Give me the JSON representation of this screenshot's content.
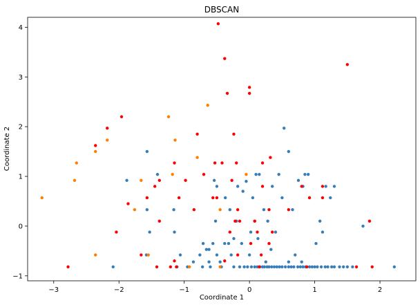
{
  "chart_data": {
    "type": "scatter",
    "title": "DBSCAN",
    "xlabel": "Coordinate 1",
    "ylabel": "Coordinate 2",
    "xlim": [
      -3.4,
      2.55
    ],
    "ylim": [
      -1.1,
      4.2
    ],
    "xticks": [
      -3,
      -2,
      -1,
      0,
      1,
      2
    ],
    "yticks": [
      -1,
      0,
      1,
      2,
      3,
      4
    ],
    "grid": false,
    "legend": "none",
    "series": [
      {
        "color": "#377eb8",
        "points": [
          [
            -2.09,
            -0.82
          ],
          [
            -1.88,
            0.92
          ],
          [
            -1.57,
            1.5
          ],
          [
            -1.57,
            0.33
          ],
          [
            -1.53,
            -0.12
          ],
          [
            -1.58,
            -0.58
          ],
          [
            -1.41,
            1.04
          ],
          [
            -1.16,
            0.33
          ],
          [
            -1.15,
            -0.12
          ],
          [
            -1.06,
            -0.58
          ],
          [
            -1.11,
            -0.82
          ],
          [
            -0.95,
            -0.82
          ],
          [
            -0.86,
            -0.72
          ],
          [
            -0.76,
            -0.58
          ],
          [
            -0.72,
            -0.82
          ],
          [
            -0.71,
            -0.35
          ],
          [
            -0.66,
            -0.47
          ],
          [
            -0.62,
            -0.47
          ],
          [
            -0.62,
            -0.72
          ],
          [
            -0.6,
            -0.82
          ],
          [
            -0.56,
            -0.35
          ],
          [
            -0.54,
            0.92
          ],
          [
            -0.5,
            -0.58
          ],
          [
            -0.52,
            0.1
          ],
          [
            -0.5,
            0.8
          ],
          [
            -0.45,
            -0.72
          ],
          [
            -0.43,
            -0.82
          ],
          [
            -0.38,
            -0.35
          ],
          [
            -0.37,
            0.57
          ],
          [
            -0.32,
            -0.35
          ],
          [
            -0.3,
            0.33
          ],
          [
            -0.28,
            -0.58
          ],
          [
            -0.24,
            -0.82
          ],
          [
            -0.24,
            -0.25
          ],
          [
            -0.2,
            0.1
          ],
          [
            -0.18,
            0.8
          ],
          [
            -0.15,
            -0.82
          ],
          [
            -0.12,
            -0.35
          ],
          [
            -0.1,
            0.7
          ],
          [
            -0.08,
            -0.82
          ],
          [
            -0.05,
            0.9
          ],
          [
            -0.03,
            -0.82
          ],
          [
            0,
            -0.58
          ],
          [
            0.02,
            -0.12
          ],
          [
            0.03,
            -0.82
          ],
          [
            0.05,
            0.57
          ],
          [
            0.08,
            -0.82
          ],
          [
            0.08,
            0.1
          ],
          [
            0.1,
            1.04
          ],
          [
            0.12,
            -0.82
          ],
          [
            0.13,
            -0.25
          ],
          [
            0.15,
            1.04
          ],
          [
            0.16,
            -0.82
          ],
          [
            0.2,
            -0.82
          ],
          [
            0.22,
            0.33
          ],
          [
            0.23,
            -0.82
          ],
          [
            0.25,
            -0.72
          ],
          [
            0.27,
            -0.82
          ],
          [
            0.28,
            0.1
          ],
          [
            0.3,
            -0.82
          ],
          [
            0.33,
            -0.47
          ],
          [
            0.35,
            0.8
          ],
          [
            0.34,
            -0.82
          ],
          [
            0.38,
            -0.82
          ],
          [
            0.4,
            -0.12
          ],
          [
            0.42,
            -0.82
          ],
          [
            0.45,
            1.04
          ],
          [
            0.46,
            -0.82
          ],
          [
            0.5,
            0.57
          ],
          [
            0.5,
            -0.82
          ],
          [
            0.53,
            1.97
          ],
          [
            0.55,
            -0.82
          ],
          [
            0.6,
            -0.72
          ],
          [
            0.6,
            1.5
          ],
          [
            0.6,
            -0.82
          ],
          [
            0.64,
            -0.82
          ],
          [
            0.66,
            0.33
          ],
          [
            0.68,
            -0.82
          ],
          [
            0.7,
            -0.58
          ],
          [
            0.74,
            -0.82
          ],
          [
            0.75,
            0.92
          ],
          [
            0.78,
            -0.82
          ],
          [
            0.8,
            -0.72
          ],
          [
            0.82,
            0.8
          ],
          [
            0.82,
            -0.82
          ],
          [
            0.85,
            1.04
          ],
          [
            0.86,
            -0.82
          ],
          [
            0.9,
            1.04
          ],
          [
            0.92,
            -0.82
          ],
          [
            0.96,
            -0.82
          ],
          [
            1,
            -0.82
          ],
          [
            1.02,
            -0.35
          ],
          [
            1.04,
            -0.82
          ],
          [
            1.08,
            0.1
          ],
          [
            1.1,
            -0.82
          ],
          [
            1.12,
            -0.12
          ],
          [
            1.16,
            -0.82
          ],
          [
            1.17,
            0.8
          ],
          [
            1.2,
            -0.82
          ],
          [
            1.24,
            0.57
          ],
          [
            1.26,
            -0.82
          ],
          [
            1.3,
            0.8
          ],
          [
            1.3,
            -0.82
          ],
          [
            1.38,
            -0.82
          ],
          [
            1.44,
            -0.82
          ],
          [
            1.5,
            -0.82
          ],
          [
            1.58,
            -0.82
          ],
          [
            1.74,
            0
          ],
          [
            2.22,
            -0.82
          ]
        ]
      },
      {
        "color": "#ff7f00",
        "points": [
          [
            -3.18,
            0.57
          ],
          [
            -2.68,
            0.92
          ],
          [
            -2.65,
            1.27
          ],
          [
            -2.36,
            1.5
          ],
          [
            -2.36,
            -0.58
          ],
          [
            -2.18,
            1.73
          ],
          [
            -1.76,
            0.33
          ],
          [
            -1.66,
            0.92
          ],
          [
            -1.55,
            -0.58
          ],
          [
            -1.24,
            2.2
          ],
          [
            -1.18,
            1.04
          ],
          [
            -1.14,
            1.73
          ],
          [
            -0.92,
            -0.82
          ],
          [
            -0.8,
            1.38
          ],
          [
            -0.64,
            2.43
          ],
          [
            -0.45,
            0.33
          ],
          [
            -0.45,
            -0.82
          ],
          [
            -0.05,
            1.04
          ]
        ]
      },
      {
        "color": "#ff0000",
        "points": [
          [
            -2.78,
            -0.82
          ],
          [
            -2.36,
            1.62
          ],
          [
            -2.18,
            1.97
          ],
          [
            -2.04,
            -0.12
          ],
          [
            -1.96,
            2.2
          ],
          [
            -1.86,
            0.45
          ],
          [
            -1.66,
            -0.58
          ],
          [
            -1.57,
            0.57
          ],
          [
            -1.45,
            0.8
          ],
          [
            -1.42,
            -0.82
          ],
          [
            -1.38,
            0.92
          ],
          [
            -1.38,
            0.1
          ],
          [
            -1.21,
            -0.82
          ],
          [
            -1.15,
            -0.7
          ],
          [
            -1.12,
            -0.82
          ],
          [
            -1.08,
            0.57
          ],
          [
            -0.98,
            0.92
          ],
          [
            -1.15,
            1.27
          ],
          [
            -0.85,
            0.33
          ],
          [
            -0.8,
            1.85
          ],
          [
            -0.7,
            1.04
          ],
          [
            -0.56,
            0.57
          ],
          [
            -0.53,
            1.27
          ],
          [
            -0.5,
            0.57
          ],
          [
            -0.48,
            4.07
          ],
          [
            -0.42,
            1.27
          ],
          [
            -0.38,
            3.37
          ],
          [
            -0.38,
            -0.7
          ],
          [
            -0.34,
            2.67
          ],
          [
            -0.3,
            -0.12
          ],
          [
            -0.27,
            0.92
          ],
          [
            -0.24,
            1.85
          ],
          [
            -0.22,
            0.1
          ],
          [
            -0.2,
            1.27
          ],
          [
            -0.18,
            -0.58
          ],
          [
            -0.18,
            0.33
          ],
          [
            -0.15,
            0.1
          ],
          [
            0,
            2.79
          ],
          [
            0,
            2.67
          ],
          [
            0.02,
            -0.35
          ],
          [
            0.08,
            0.1
          ],
          [
            0.12,
            -0.12
          ],
          [
            0.15,
            -0.82
          ],
          [
            0.18,
            -0.58
          ],
          [
            0.2,
            1.27
          ],
          [
            0.2,
            0.8
          ],
          [
            0.3,
            -0.35
          ],
          [
            0.3,
            0.33
          ],
          [
            0.32,
            1.38
          ],
          [
            0.35,
            -0.12
          ],
          [
            0.6,
            0.33
          ],
          [
            0.8,
            0.8
          ],
          [
            0.88,
            -0.82
          ],
          [
            0.92,
            0.57
          ],
          [
            1.12,
            0.57
          ],
          [
            1.12,
            0.8
          ],
          [
            1.5,
            3.25
          ],
          [
            1.64,
            -0.82
          ],
          [
            1.84,
            0.1
          ],
          [
            1.88,
            -0.82
          ]
        ]
      }
    ]
  }
}
